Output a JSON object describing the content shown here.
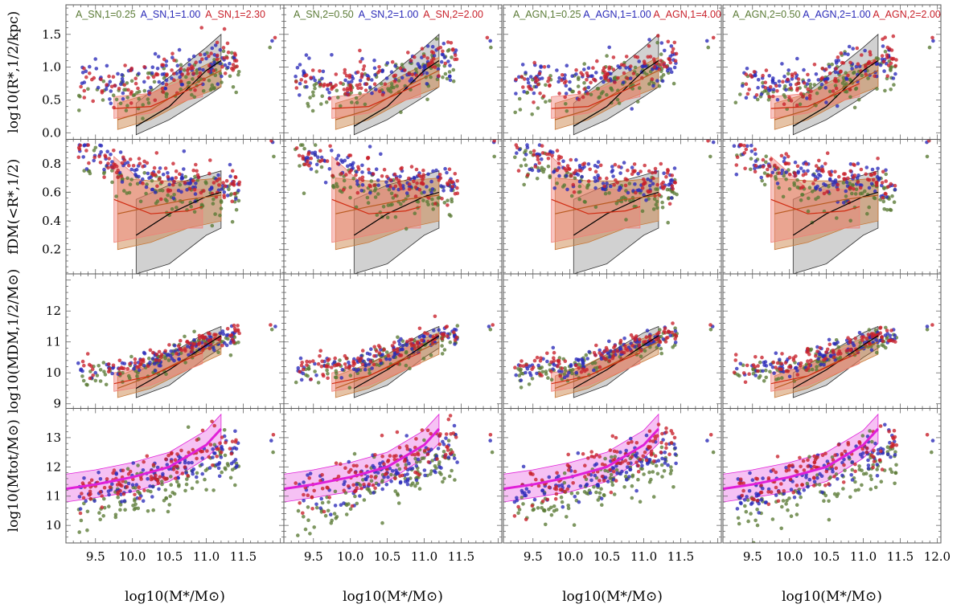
{
  "chart_data": {
    "type": "scatter",
    "title": "",
    "layout": "4 rows x 4 columns of scatter panels with shaded observational bands",
    "xlim": [
      9.1,
      12.05
    ],
    "x_ticks": [
      "9.5",
      "10.0",
      "10.5",
      "11.0",
      "11.5",
      "12.0"
    ],
    "xlabel": "log10(M*/M⊙)",
    "colors": {
      "green": "#5a7a35",
      "blue": "#2a2ab8",
      "red": "#c8202a",
      "gray_band": "#9a9a9a",
      "red_band": "#f08078",
      "orange_band": "#c87a3a",
      "magenta": "#e020d8"
    },
    "columns": [
      {
        "legend": [
          {
            "name": "A_SN,1",
            "value": "0.25",
            "color": "green"
          },
          {
            "name": "A_SN,1",
            "value": "1.00",
            "color": "blue"
          },
          {
            "name": "A_SN,1",
            "value": "2.30",
            "color": "red"
          }
        ]
      },
      {
        "legend": [
          {
            "name": "A_SN,2",
            "value": "0.50",
            "color": "green"
          },
          {
            "name": "A_SN,2",
            "value": "1.00",
            "color": "blue"
          },
          {
            "name": "A_SN,2",
            "value": "2.00",
            "color": "red"
          }
        ]
      },
      {
        "legend": [
          {
            "name": "A_AGN,1",
            "value": "0.25",
            "color": "green"
          },
          {
            "name": "A_AGN,1",
            "value": "1.00",
            "color": "blue"
          },
          {
            "name": "A_AGN,1",
            "value": "4.00",
            "color": "red"
          }
        ]
      },
      {
        "legend": [
          {
            "name": "A_AGN,2",
            "value": "0.50",
            "color": "green"
          },
          {
            "name": "A_AGN,2",
            "value": "1.00",
            "color": "blue"
          },
          {
            "name": "A_AGN,2",
            "value": "2.00",
            "color": "red"
          }
        ]
      }
    ],
    "rows": [
      {
        "ylabel": "log10(R*,1/2/kpc)",
        "ylim": [
          -0.1,
          1.95
        ],
        "y_ticks": [
          "0.0",
          "0.5",
          "1.0",
          "1.5"
        ],
        "y_tick_values": [
          0.0,
          0.5,
          1.0,
          1.5
        ],
        "bands": [
          {
            "color": "gray_band",
            "x": [
              10.05,
              10.5,
              11.0,
              11.2
            ],
            "lower": [
              -0.03,
              0.2,
              0.55,
              0.7
            ],
            "median": [
              0.1,
              0.4,
              0.95,
              1.1
            ],
            "upper": [
              0.45,
              0.85,
              1.3,
              1.5
            ]
          },
          {
            "color": "orange_band",
            "x": [
              9.8,
              10.25,
              10.75,
              11.2
            ],
            "lower": [
              0.05,
              0.2,
              0.5,
              0.7
            ],
            "median": [
              0.2,
              0.35,
              0.7,
              0.95
            ],
            "upper": [
              0.45,
              0.6,
              0.9,
              1.15
            ]
          },
          {
            "color": "red_band",
            "x": [
              9.75,
              10.25,
              10.75,
              10.95
            ],
            "lower": [
              0.22,
              0.3,
              0.5,
              0.55
            ],
            "median": [
              0.37,
              0.4,
              0.65,
              0.75
            ],
            "upper": [
              0.55,
              0.6,
              0.82,
              0.87
            ]
          }
        ],
        "series": [
          {
            "name": "green",
            "trend": [
              [
                9.25,
                0.62
              ],
              [
                10.0,
                0.58
              ],
              [
                10.6,
                0.78
              ],
              [
                11.3,
                1.0
              ]
            ],
            "scatter": 0.17
          },
          {
            "name": "blue",
            "trend": [
              [
                9.3,
                0.85
              ],
              [
                10.0,
                0.75
              ],
              [
                10.6,
                0.9
              ],
              [
                11.3,
                1.1
              ]
            ],
            "scatter": 0.15
          },
          {
            "name": "red",
            "trend": [
              [
                9.3,
                0.8
              ],
              [
                10.0,
                0.72
              ],
              [
                10.6,
                0.92
              ],
              [
                11.3,
                1.15
              ]
            ],
            "scatter": 0.15
          }
        ]
      },
      {
        "ylabel": "fDM(<R*,1/2)",
        "ylim": [
          0.03,
          0.97
        ],
        "y_ticks": [
          "0.2",
          "0.4",
          "0.6",
          "0.8"
        ],
        "y_tick_values": [
          0.2,
          0.4,
          0.6,
          0.8
        ],
        "bands": [
          {
            "color": "gray_band",
            "x": [
              10.05,
              10.5,
              11.0,
              11.2
            ],
            "lower": [
              0.03,
              0.1,
              0.3,
              0.35
            ],
            "median": [
              0.3,
              0.45,
              0.57,
              0.6
            ],
            "upper": [
              0.55,
              0.65,
              0.72,
              0.75
            ]
          },
          {
            "color": "orange_band",
            "x": [
              9.8,
              10.25,
              10.75,
              11.2
            ],
            "lower": [
              0.2,
              0.25,
              0.35,
              0.4
            ],
            "median": [
              0.45,
              0.5,
              0.55,
              0.58
            ],
            "upper": [
              0.7,
              0.68,
              0.68,
              0.7
            ]
          },
          {
            "color": "red_band",
            "x": [
              9.75,
              10.25,
              10.75,
              10.95
            ],
            "lower": [
              0.25,
              0.3,
              0.35,
              0.35
            ],
            "median": [
              0.55,
              0.45,
              0.47,
              0.5
            ],
            "upper": [
              0.85,
              0.62,
              0.62,
              0.62
            ]
          }
        ],
        "series": [
          {
            "name": "green",
            "trend": [
              [
                9.25,
                0.86
              ],
              [
                10.0,
                0.65
              ],
              [
                10.6,
                0.55
              ],
              [
                11.3,
                0.55
              ]
            ],
            "scatter": 0.07
          },
          {
            "name": "blue",
            "trend": [
              [
                9.3,
                0.88
              ],
              [
                10.0,
                0.75
              ],
              [
                10.6,
                0.68
              ],
              [
                11.3,
                0.65
              ]
            ],
            "scatter": 0.06
          },
          {
            "name": "red",
            "trend": [
              [
                9.3,
                0.88
              ],
              [
                10.0,
                0.76
              ],
              [
                10.6,
                0.7
              ],
              [
                11.3,
                0.66
              ]
            ],
            "scatter": 0.06
          }
        ]
      },
      {
        "ylabel": "log10(MDM,1/2/M⊙)",
        "ylim": [
          8.85,
          13.2
        ],
        "y_ticks": [
          "9",
          "10",
          "11",
          "12"
        ],
        "y_tick_values": [
          9,
          10,
          11,
          12
        ],
        "bands": [
          {
            "color": "gray_band",
            "x": [
              10.05,
              10.5,
              11.0,
              11.2
            ],
            "lower": [
              9.2,
              9.6,
              10.5,
              10.8
            ],
            "median": [
              9.5,
              10.1,
              10.9,
              11.2
            ],
            "upper": [
              10.0,
              10.6,
              11.3,
              11.5
            ]
          },
          {
            "color": "orange_band",
            "x": [
              9.8,
              10.25,
              10.75,
              11.2
            ],
            "lower": [
              9.2,
              9.5,
              10.1,
              10.6
            ],
            "median": [
              9.5,
              9.9,
              10.5,
              11.0
            ],
            "upper": [
              9.9,
              10.3,
              10.9,
              11.3
            ]
          },
          {
            "color": "red_band",
            "x": [
              9.75,
              10.25,
              10.75,
              10.95
            ],
            "lower": [
              9.4,
              9.6,
              10.1,
              10.3
            ],
            "median": [
              9.65,
              9.9,
              10.45,
              10.65
            ],
            "upper": [
              10.0,
              10.2,
              10.8,
              11.0
            ]
          }
        ],
        "series": [
          {
            "name": "green",
            "trend": [
              [
                9.25,
                9.95
              ],
              [
                10.0,
                10.05
              ],
              [
                10.6,
                10.6
              ],
              [
                11.3,
                11.1
              ]
            ],
            "scatter": 0.2
          },
          {
            "name": "blue",
            "trend": [
              [
                9.3,
                10.1
              ],
              [
                10.0,
                10.2
              ],
              [
                10.6,
                10.7
              ],
              [
                11.3,
                11.2
              ]
            ],
            "scatter": 0.18
          },
          {
            "name": "red",
            "trend": [
              [
                9.3,
                10.15
              ],
              [
                10.0,
                10.25
              ],
              [
                10.6,
                10.75
              ],
              [
                11.3,
                11.25
              ]
            ],
            "scatter": 0.18
          }
        ]
      },
      {
        "ylabel": "log10(Mtot/M⊙)",
        "ylim": [
          9.4,
          14.0
        ],
        "y_ticks": [
          "10",
          "11",
          "12",
          "13"
        ],
        "y_tick_values": [
          10,
          11,
          12,
          13
        ],
        "bands": [
          {
            "color": "magenta",
            "x": [
              9.1,
              9.5,
              10.0,
              10.5,
              11.0,
              11.2
            ],
            "lower": [
              10.8,
              10.95,
              11.15,
              11.5,
              12.3,
              12.8
            ],
            "median": [
              11.25,
              11.4,
              11.65,
              12.0,
              12.75,
              13.3
            ],
            "upper": [
              11.75,
              11.9,
              12.15,
              12.5,
              13.25,
              13.8
            ]
          }
        ],
        "series": [
          {
            "name": "green",
            "trend": [
              [
                9.25,
                10.3
              ],
              [
                10.0,
                10.9
              ],
              [
                10.6,
                11.5
              ],
              [
                11.3,
                12.2
              ]
            ],
            "scatter": 0.45
          },
          {
            "name": "blue",
            "trend": [
              [
                9.3,
                11.0
              ],
              [
                10.0,
                11.4
              ],
              [
                10.6,
                11.9
              ],
              [
                11.3,
                12.6
              ]
            ],
            "scatter": 0.35
          },
          {
            "name": "red",
            "trend": [
              [
                9.3,
                11.2
              ],
              [
                10.0,
                11.6
              ],
              [
                10.6,
                12.1
              ],
              [
                11.3,
                12.8
              ]
            ],
            "scatter": 0.35
          }
        ]
      }
    ]
  }
}
